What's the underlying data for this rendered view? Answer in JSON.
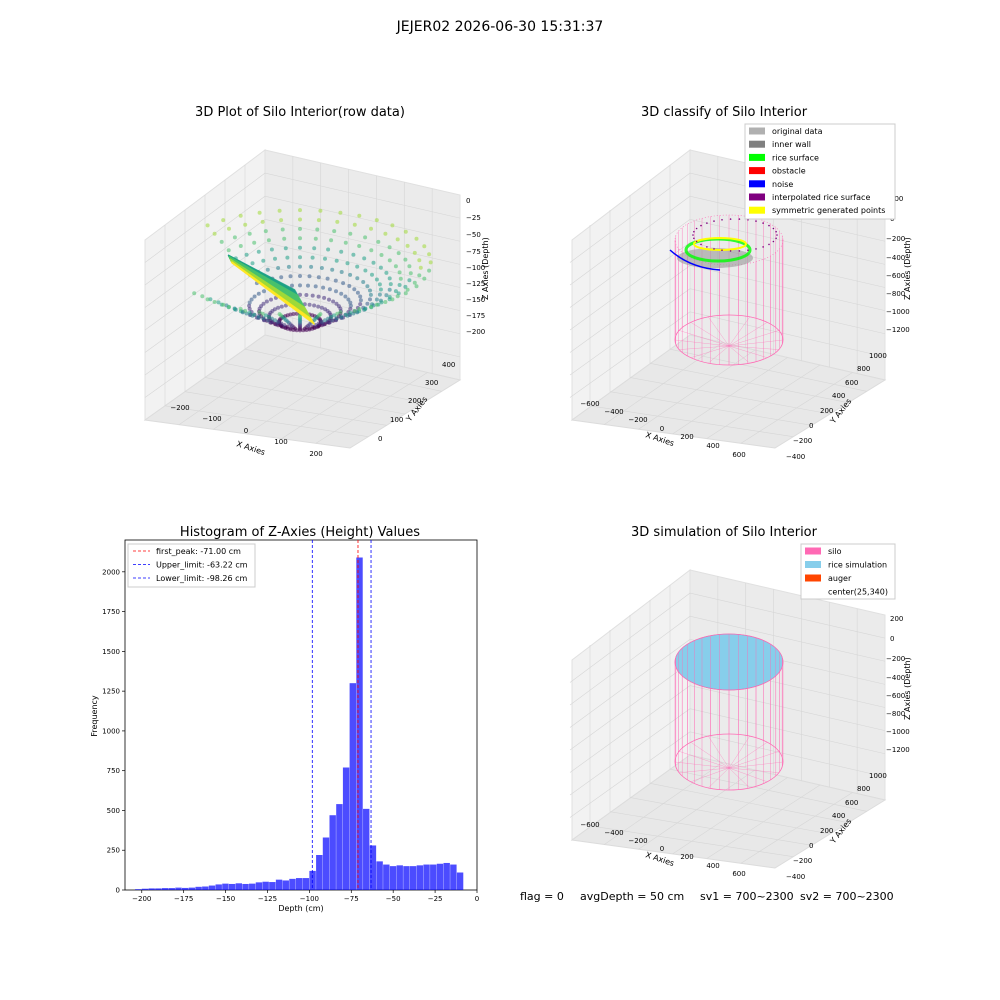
{
  "figure_title": "JEJER02 2026-06-30 15:31:37",
  "status_line": {
    "flag": "flag = 0",
    "avg_depth": "avgDepth = 50 cm",
    "sv1": "sv1 = 700~2300",
    "sv2": "sv2 = 700~2300"
  },
  "colors": {
    "silo": "#ff69b4",
    "rice_sim": "#87ceeb",
    "auger": "#ff4500",
    "hist_bar": "#0000ff",
    "peak_line": "#ff0000",
    "limit_line": "#0000ff"
  },
  "panel1": {
    "title": "3D Plot of Silo Interior(row data)",
    "xlabel": "X Axies",
    "ylabel": "Y Axies",
    "zlabel": "Z Axies (Depth)",
    "xticks": [
      "−200",
      "−100",
      "0",
      "100",
      "200"
    ],
    "yticks": [
      "0",
      "100",
      "200",
      "300",
      "400"
    ],
    "zticks": [
      "0",
      "−25",
      "−50",
      "−75",
      "−100",
      "−125",
      "−150",
      "−175",
      "−200"
    ]
  },
  "panel2": {
    "title": "3D classify of Silo Interior",
    "xlabel": "X Axies",
    "ylabel": "Y Axies",
    "zlabel": "Z Axies (Depth)",
    "xticks": [
      "−600",
      "−400",
      "−200",
      "0",
      "200",
      "400",
      "600"
    ],
    "yticks": [
      "−400",
      "−200",
      "0",
      "200",
      "400",
      "600",
      "800",
      "1000"
    ],
    "zticks": [
      "200",
      "0",
      "−200",
      "−400",
      "−600",
      "−800",
      "−1000",
      "−1200"
    ],
    "legend": [
      {
        "label": "original data",
        "color": "#b0b0b0"
      },
      {
        "label": "inner wall",
        "color": "#808080"
      },
      {
        "label": "rice surface",
        "color": "#00ff00"
      },
      {
        "label": "obstacle",
        "color": "#ff0000"
      },
      {
        "label": "noise",
        "color": "#0000ff"
      },
      {
        "label": "interpolated rice surface",
        "color": "#800080"
      },
      {
        "label": "symmetric generated points",
        "color": "#ffff00"
      }
    ]
  },
  "panel4": {
    "title": "3D simulation of Silo Interior",
    "xlabel": "X Axies",
    "ylabel": "Y Axies",
    "zlabel": "Z Axies (Depth)",
    "xticks": [
      "−600",
      "−400",
      "−200",
      "0",
      "200",
      "400",
      "600"
    ],
    "yticks": [
      "−400",
      "−200",
      "0",
      "200",
      "400",
      "600",
      "800",
      "1000"
    ],
    "zticks": [
      "200",
      "0",
      "−200",
      "−400",
      "−600",
      "−800",
      "−1000",
      "−1200"
    ],
    "legend": [
      {
        "label": "silo",
        "color": "#ff69b4"
      },
      {
        "label": "rice simulation",
        "color": "#87ceeb"
      },
      {
        "label": "auger",
        "color": "#ff4500"
      },
      {
        "label": "center(25,340)",
        "color": ""
      }
    ]
  },
  "chart_data": {
    "type": "bar",
    "title": "Histogram of Z-Axies (Height) Values",
    "xlabel": "Depth (cm)",
    "ylabel": "Frequency",
    "xlim": [
      -210,
      0
    ],
    "ylim": [
      0,
      2200
    ],
    "xticks": [
      -200,
      -175,
      -150,
      -125,
      -100,
      -75,
      -50,
      -25,
      0
    ],
    "yticks": [
      0,
      250,
      500,
      750,
      1000,
      1250,
      1500,
      1750,
      2000
    ],
    "bin_width": 4,
    "bins": [
      {
        "x": -204,
        "v": 5
      },
      {
        "x": -200,
        "v": 8
      },
      {
        "x": -196,
        "v": 10
      },
      {
        "x": -192,
        "v": 10
      },
      {
        "x": -188,
        "v": 12
      },
      {
        "x": -184,
        "v": 12
      },
      {
        "x": -180,
        "v": 15
      },
      {
        "x": -176,
        "v": 13
      },
      {
        "x": -172,
        "v": 15
      },
      {
        "x": -168,
        "v": 20
      },
      {
        "x": -164,
        "v": 22
      },
      {
        "x": -160,
        "v": 28
      },
      {
        "x": -156,
        "v": 35
      },
      {
        "x": -152,
        "v": 40
      },
      {
        "x": -148,
        "v": 38
      },
      {
        "x": -144,
        "v": 42
      },
      {
        "x": -140,
        "v": 38
      },
      {
        "x": -136,
        "v": 40
      },
      {
        "x": -132,
        "v": 48
      },
      {
        "x": -128,
        "v": 52
      },
      {
        "x": -124,
        "v": 50
      },
      {
        "x": -120,
        "v": 65
      },
      {
        "x": -116,
        "v": 60
      },
      {
        "x": -112,
        "v": 70
      },
      {
        "x": -108,
        "v": 75
      },
      {
        "x": -104,
        "v": 75
      },
      {
        "x": -100,
        "v": 120
      },
      {
        "x": -96,
        "v": 220
      },
      {
        "x": -92,
        "v": 330
      },
      {
        "x": -88,
        "v": 470
      },
      {
        "x": -84,
        "v": 540
      },
      {
        "x": -80,
        "v": 770
      },
      {
        "x": -76,
        "v": 1300
      },
      {
        "x": -72,
        "v": 2090
      },
      {
        "x": -68,
        "v": 510
      },
      {
        "x": -64,
        "v": 280
      },
      {
        "x": -60,
        "v": 180
      },
      {
        "x": -56,
        "v": 160
      },
      {
        "x": -52,
        "v": 150
      },
      {
        "x": -48,
        "v": 155
      },
      {
        "x": -44,
        "v": 150
      },
      {
        "x": -40,
        "v": 150
      },
      {
        "x": -36,
        "v": 155
      },
      {
        "x": -32,
        "v": 160
      },
      {
        "x": -28,
        "v": 160
      },
      {
        "x": -24,
        "v": 165
      },
      {
        "x": -20,
        "v": 170
      },
      {
        "x": -16,
        "v": 160
      },
      {
        "x": -12,
        "v": 110
      }
    ],
    "vlines": [
      {
        "label": "first_peak: -71.00 cm",
        "x": -71.0,
        "color": "#ff0000"
      },
      {
        "label": "Upper_limit: -63.22 cm",
        "x": -63.22,
        "color": "#0000ff"
      },
      {
        "label": "Lower_limit: -98.26 cm",
        "x": -98.26,
        "color": "#0000ff"
      }
    ]
  }
}
